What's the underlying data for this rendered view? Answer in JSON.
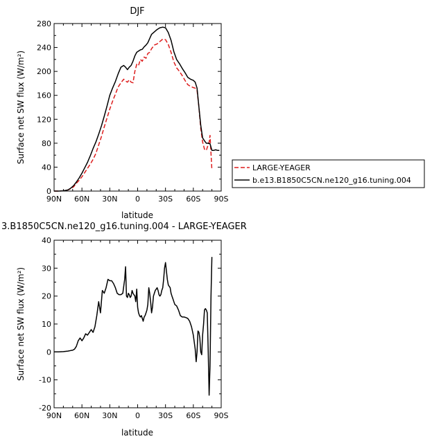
{
  "chart_data": [
    {
      "type": "line",
      "title": "DJF",
      "xlabel": "latitude",
      "ylabel": "Surface net SW flux (W/m²)",
      "xlim": [
        90,
        -90
      ],
      "ylim": [
        0,
        280
      ],
      "x_ticks": [
        90,
        60,
        30,
        0,
        -30,
        -60,
        -90
      ],
      "x_tick_labels": [
        "90N",
        "60N",
        "30N",
        "0",
        "30S",
        "60S",
        "90S"
      ],
      "y_ticks": [
        0,
        40,
        80,
        120,
        160,
        200,
        240,
        280
      ],
      "y_tick_labels": [
        "0",
        "40",
        "80",
        "120",
        "160",
        "200",
        "240",
        "280"
      ],
      "grid": false,
      "legend_position": "right",
      "series": [
        {
          "name": "LARGE-YEAGER",
          "color": "#dd1c1c",
          "dash": "dashed",
          "x": [
            90,
            85,
            80,
            75,
            72,
            69,
            66,
            63,
            60,
            57,
            54,
            51,
            48,
            45,
            42,
            39,
            36,
            33,
            30,
            27,
            24,
            21,
            18,
            15,
            13,
            11,
            9,
            7,
            5,
            3,
            1,
            -1,
            -3,
            -5,
            -7,
            -9,
            -11,
            -13,
            -15,
            -18,
            -21,
            -24,
            -27,
            -30,
            -33,
            -36,
            -39,
            -42,
            -45,
            -48,
            -51,
            -54,
            -57,
            -60,
            -62,
            -64,
            -66,
            -68,
            -70,
            -72,
            -74,
            -76,
            -77,
            -78,
            -79,
            -80
          ],
          "y": [
            0,
            0,
            0.5,
            2,
            4,
            7,
            13,
            18,
            24,
            31,
            38,
            45,
            53,
            63,
            77,
            91,
            107,
            122,
            137,
            150,
            162,
            174,
            181,
            187,
            184,
            182,
            186,
            182,
            181,
            200,
            212,
            210,
            220,
            217,
            224,
            222,
            230,
            232,
            238,
            244,
            246,
            250,
            254,
            253,
            245,
            232,
            216,
            206,
            200,
            193,
            185,
            178,
            175,
            173,
            172,
            168,
            140,
            105,
            82,
            70,
            68,
            78,
            82,
            93,
            63,
            35
          ]
        },
        {
          "name": "b.e13.B1850C5CN.ne120_g16.tuning.004",
          "color": "#000000",
          "dash": "solid",
          "x": [
            90,
            85,
            80,
            75,
            72,
            69,
            66,
            63,
            60,
            57,
            54,
            51,
            48,
            45,
            42,
            39,
            36,
            33,
            30,
            27,
            24,
            21,
            18,
            15,
            13,
            11,
            9,
            7,
            5,
            3,
            1,
            -1,
            -3,
            -5,
            -7,
            -9,
            -11,
            -13,
            -15,
            -18,
            -21,
            -24,
            -27,
            -30,
            -33,
            -36,
            -39,
            -42,
            -45,
            -48,
            -51,
            -54,
            -57,
            -60,
            -62,
            -64,
            -66,
            -68,
            -70,
            -72,
            -74,
            -76,
            -78,
            -80,
            -82,
            -84,
            -86,
            -88
          ],
          "y": [
            0,
            0,
            0.5,
            2,
            5,
            9,
            15,
            22,
            30,
            39,
            48,
            59,
            71,
            82,
            95,
            109,
            125,
            142,
            160,
            172,
            183,
            196,
            207,
            210,
            207,
            203,
            207,
            210,
            217,
            226,
            232,
            234,
            236,
            237,
            241,
            244,
            248,
            255,
            262,
            266,
            270,
            273,
            274,
            273,
            265,
            252,
            233,
            220,
            213,
            205,
            198,
            190,
            187,
            185,
            182,
            172,
            140,
            110,
            89,
            84,
            80,
            80,
            79,
            68,
            68,
            69,
            68,
            68
          ]
        }
      ]
    },
    {
      "type": "line",
      "title": "3.B1850C5CN.ne120_g16.tuning.004 - LARGE-YEAGER",
      "xlabel": "latitude",
      "ylabel": "Surface net SW flux (W/m²)",
      "xlim": [
        90,
        -90
      ],
      "ylim": [
        -20,
        40
      ],
      "x_ticks": [
        90,
        60,
        30,
        0,
        -30,
        -60,
        -90
      ],
      "x_tick_labels": [
        "90N",
        "60N",
        "30N",
        "0",
        "30S",
        "60S",
        "90S"
      ],
      "y_ticks": [
        -20,
        -10,
        0,
        10,
        20,
        30,
        40
      ],
      "y_tick_labels": [
        "-20",
        "-10",
        "0",
        "10",
        "20",
        "30",
        "40"
      ],
      "grid": false,
      "series": [
        {
          "color": "#000000",
          "dash": "solid",
          "x": [
            90,
            85,
            80,
            75,
            72,
            70,
            68,
            66,
            64,
            62,
            60,
            58,
            56,
            54,
            52,
            50,
            48,
            46,
            44,
            42,
            40,
            38,
            36,
            34,
            32,
            30,
            28,
            26,
            24,
            22,
            20,
            18,
            16,
            14,
            13,
            12,
            11,
            10,
            9,
            8,
            7,
            6,
            5,
            4,
            3,
            2,
            1,
            0,
            -1,
            -2,
            -3,
            -4,
            -5,
            -6,
            -7,
            -8,
            -9,
            -10,
            -11,
            -12,
            -13,
            -14,
            -15,
            -16,
            -17,
            -18,
            -19,
            -20,
            -21,
            -22,
            -23,
            -24,
            -25,
            -26,
            -27,
            -28,
            -29,
            -30,
            -31,
            -32,
            -33,
            -34,
            -35,
            -36,
            -37,
            -38,
            -39,
            -40,
            -42,
            -44,
            -46,
            -48,
            -50,
            -52,
            -54,
            -56,
            -58,
            -60,
            -62,
            -63,
            -64,
            -65,
            -66,
            -67,
            -68,
            -69,
            -70,
            -71,
            -72,
            -73,
            -74,
            -75,
            -76,
            -77,
            -78,
            -79,
            -80
          ],
          "y": [
            0,
            0,
            0.1,
            0.3,
            0.5,
            0.6,
            1,
            2,
            4,
            5,
            4,
            5,
            6.5,
            6,
            7,
            8,
            7,
            9,
            13,
            18,
            14,
            22,
            21,
            23,
            26,
            25.5,
            25.5,
            24.5,
            23,
            21,
            20.5,
            20.5,
            21,
            26,
            30.5,
            20,
            19.5,
            21,
            20.5,
            19.5,
            20,
            22,
            21,
            20.5,
            20,
            18,
            22.5,
            16,
            14,
            13,
            12.5,
            13,
            12,
            11,
            12.5,
            13,
            14,
            15,
            17,
            23,
            21,
            18,
            14,
            16,
            20,
            21,
            22,
            22.5,
            23,
            22,
            20.5,
            20,
            20.5,
            22,
            23,
            26,
            30,
            32,
            29,
            26,
            24,
            23.5,
            23,
            21,
            20,
            19,
            18,
            17,
            16.5,
            15,
            13,
            12.5,
            12.5,
            12.3,
            12,
            11,
            9,
            6,
            1,
            -3.5,
            0,
            7.5,
            7,
            5,
            0,
            -1,
            6,
            10,
            15,
            15.5,
            15,
            14,
            0,
            -15.5,
            -5,
            20,
            34
          ]
        }
      ]
    }
  ]
}
